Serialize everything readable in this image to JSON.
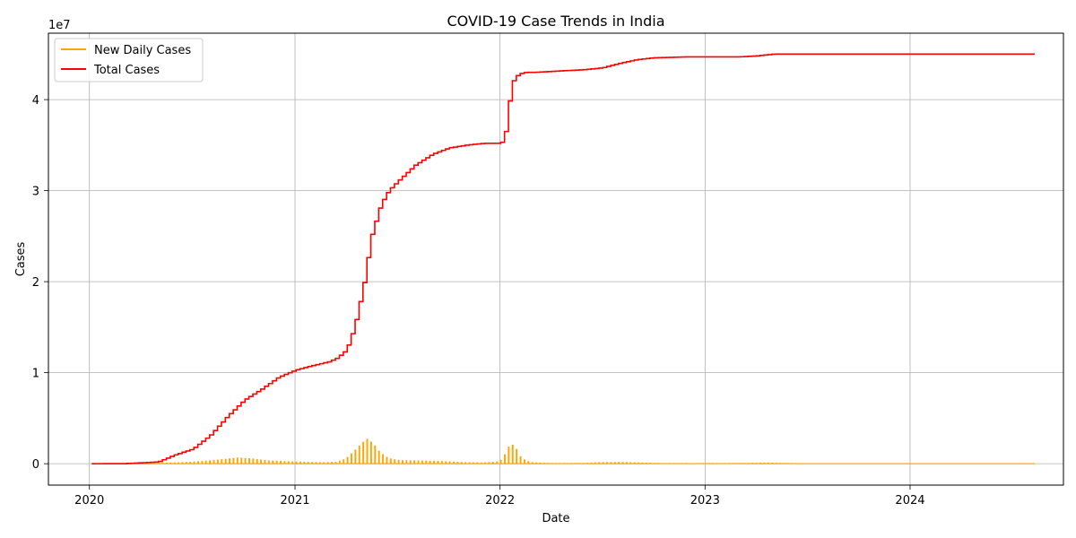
{
  "chart_data": {
    "type": "line",
    "title": "COVID-19 Case Trends in India",
    "xlabel": "Date",
    "ylabel": "Cases",
    "y_offset_label": "1e7",
    "xlim": [
      "2019-10-20",
      "2024-09-30"
    ],
    "ylim": [
      -2350000,
      47300000
    ],
    "x_ticks": [
      {
        "date": "2020-01-01",
        "label": "2020"
      },
      {
        "date": "2021-01-01",
        "label": "2021"
      },
      {
        "date": "2022-01-01",
        "label": "2022"
      },
      {
        "date": "2023-01-01",
        "label": "2023"
      },
      {
        "date": "2024-01-01",
        "label": "2024"
      }
    ],
    "y_ticks": [
      {
        "value": 0,
        "label": "0"
      },
      {
        "value": 10000000,
        "label": "1"
      },
      {
        "value": 20000000,
        "label": "2"
      },
      {
        "value": 30000000,
        "label": "3"
      },
      {
        "value": 40000000,
        "label": "4"
      }
    ],
    "grid": true,
    "legend_position": "top-left",
    "series": [
      {
        "name": "New Daily Cases",
        "color": "#ffa500",
        "style": "weekly-spikes",
        "x": [
          "2020-01-05",
          "2020-03-01",
          "2020-04-01",
          "2020-05-01",
          "2020-06-01",
          "2020-07-01",
          "2020-08-01",
          "2020-09-01",
          "2020-09-20",
          "2020-10-15",
          "2020-11-15",
          "2020-12-15",
          "2021-01-15",
          "2021-02-15",
          "2021-03-15",
          "2021-04-01",
          "2021-04-15",
          "2021-05-01",
          "2021-05-08",
          "2021-05-20",
          "2021-06-01",
          "2021-06-15",
          "2021-07-01",
          "2021-08-01",
          "2021-09-01",
          "2021-10-01",
          "2021-11-01",
          "2021-12-01",
          "2021-12-31",
          "2022-01-07",
          "2022-01-14",
          "2022-01-21",
          "2022-01-28",
          "2022-02-05",
          "2022-02-15",
          "2022-03-01",
          "2022-04-01",
          "2022-05-01",
          "2022-06-01",
          "2022-07-01",
          "2022-08-01",
          "2022-09-01",
          "2022-10-01",
          "2022-12-01",
          "2023-03-01",
          "2023-04-01",
          "2023-04-20",
          "2023-05-15",
          "2023-07-01",
          "2024-01-01",
          "2024-08-10"
        ],
        "y": [
          0,
          0,
          1000,
          20000,
          70000,
          150000,
          300000,
          480000,
          620000,
          520000,
          300000,
          220000,
          150000,
          100000,
          150000,
          500000,
          1300000,
          2300000,
          2700000,
          2200000,
          1200000,
          600000,
          350000,
          300000,
          270000,
          200000,
          100000,
          70000,
          200000,
          700000,
          1700000,
          2100000,
          1800000,
          800000,
          300000,
          80000,
          10000,
          10000,
          30000,
          120000,
          130000,
          80000,
          20000,
          5000,
          10000,
          40000,
          70000,
          20000,
          0,
          0,
          0
        ]
      },
      {
        "name": "Total Cases",
        "color": "#ff0000",
        "style": "step",
        "x": [
          "2020-01-05",
          "2020-03-01",
          "2020-04-01",
          "2020-05-01",
          "2020-06-01",
          "2020-07-01",
          "2020-08-01",
          "2020-09-01",
          "2020-10-01",
          "2020-11-01",
          "2020-12-01",
          "2021-01-01",
          "2021-02-01",
          "2021-03-01",
          "2021-03-15",
          "2021-04-01",
          "2021-04-15",
          "2021-05-01",
          "2021-05-15",
          "2021-06-01",
          "2021-06-15",
          "2021-07-01",
          "2021-08-01",
          "2021-09-01",
          "2021-10-01",
          "2021-11-01",
          "2021-12-01",
          "2022-01-01",
          "2022-01-08",
          "2022-01-15",
          "2022-01-22",
          "2022-02-01",
          "2022-02-15",
          "2022-03-01",
          "2022-04-01",
          "2022-05-01",
          "2022-06-01",
          "2022-07-01",
          "2022-08-01",
          "2022-09-01",
          "2022-10-01",
          "2022-12-01",
          "2023-03-01",
          "2023-04-01",
          "2023-05-01",
          "2023-06-01",
          "2024-01-01",
          "2024-08-10"
        ],
        "y": [
          0,
          10000,
          100000,
          200000,
          1000000,
          1600000,
          3100000,
          5200000,
          7000000,
          8200000,
          9500000,
          10300000,
          10800000,
          11200000,
          11600000,
          12500000,
          15000000,
          19500000,
          25000000,
          28500000,
          30000000,
          31000000,
          32800000,
          34000000,
          34700000,
          35000000,
          35200000,
          35200000,
          36000000,
          39500000,
          42000000,
          42800000,
          43000000,
          43000000,
          43100000,
          43200000,
          43300000,
          43500000,
          44000000,
          44400000,
          44600000,
          44700000,
          44700000,
          44800000,
          45000000,
          45000000,
          45000000,
          45000000
        ]
      }
    ]
  }
}
